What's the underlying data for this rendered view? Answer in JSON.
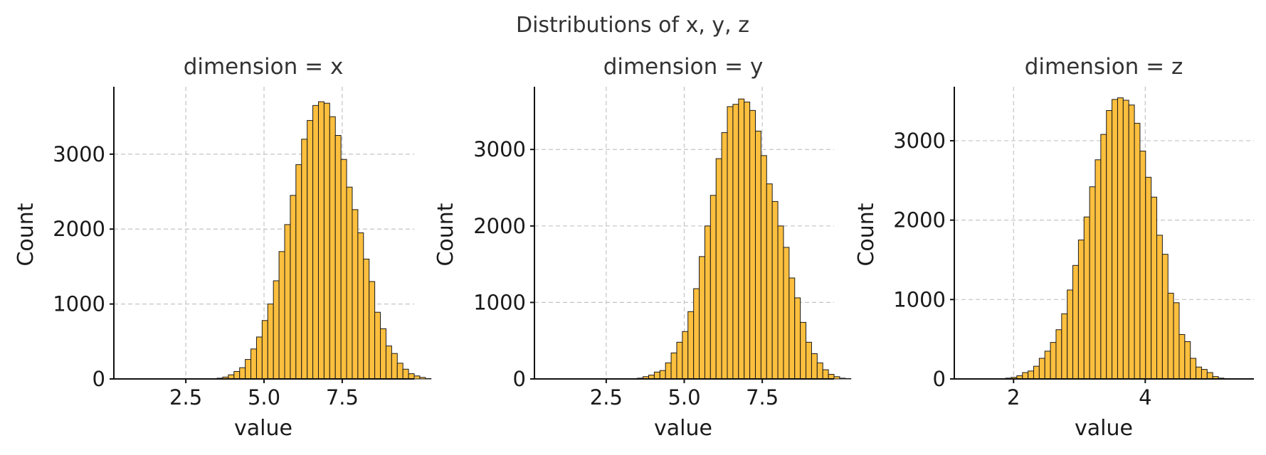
{
  "figure": {
    "suptitle": "Distributions of x, y, z",
    "bar_color": "#fcbf3e",
    "edge_color": "#1a1a1a",
    "grid": true
  },
  "chart_data": [
    {
      "type": "bar",
      "title": "dimension = x",
      "xlabel": "value",
      "ylabel": "Count",
      "xlim": [
        0.2,
        9.8
      ],
      "ylim": [
        0,
        3900
      ],
      "xticks": [
        2.5,
        5.0,
        7.5
      ],
      "xtick_labels": [
        "2.5",
        "5.0",
        "7.5"
      ],
      "yticks": [
        0,
        1000,
        2000,
        3000
      ],
      "ytick_labels": [
        "0",
        "1000",
        "2000",
        "3000"
      ],
      "bin_start": 0.8,
      "bin_width": 0.18,
      "values": [
        0,
        0,
        0,
        0,
        0,
        0,
        0,
        0,
        0,
        0,
        0,
        0,
        0,
        0,
        0,
        10,
        25,
        55,
        100,
        150,
        260,
        400,
        560,
        780,
        1000,
        1310,
        1700,
        2060,
        2450,
        2860,
        3200,
        3450,
        3650,
        3700,
        3680,
        3500,
        3250,
        2930,
        2560,
        2260,
        1950,
        1600,
        1300,
        890,
        670,
        440,
        340,
        210,
        130,
        70,
        40,
        20,
        5,
        0,
        0,
        0,
        0
      ]
    },
    {
      "type": "bar",
      "title": "dimension = y",
      "xlabel": "value",
      "ylabel": "Count",
      "xlim": [
        0.2,
        9.8
      ],
      "ylim": [
        0,
        3820
      ],
      "xticks": [
        2.5,
        5.0,
        7.5
      ],
      "xtick_labels": [
        "2.5",
        "5.0",
        "7.5"
      ],
      "yticks": [
        0,
        1000,
        2000,
        3000
      ],
      "ytick_labels": [
        "0",
        "1000",
        "2000",
        "3000"
      ],
      "bin_start": 0.8,
      "bin_width": 0.18,
      "values": [
        0,
        0,
        0,
        0,
        0,
        0,
        0,
        0,
        0,
        0,
        0,
        0,
        0,
        0,
        0,
        10,
        30,
        50,
        90,
        110,
        210,
        340,
        480,
        620,
        880,
        1180,
        1600,
        2000,
        2400,
        2880,
        3220,
        3560,
        3590,
        3660,
        3620,
        3510,
        3240,
        2920,
        2550,
        2320,
        2000,
        1720,
        1320,
        1060,
        740,
        480,
        330,
        210,
        120,
        60,
        30,
        10,
        5,
        0,
        0,
        0,
        0
      ]
    },
    {
      "type": "bar",
      "title": "dimension = z",
      "xlabel": "value",
      "ylabel": "Count",
      "xlim": [
        1.1,
        5.65
      ],
      "ylim": [
        0,
        3680
      ],
      "xticks": [
        2,
        4
      ],
      "xtick_labels": [
        "2",
        "4"
      ],
      "yticks": [
        0,
        1000,
        2000,
        3000
      ],
      "ytick_labels": [
        "0",
        "1000",
        "2000",
        "3000"
      ],
      "bin_start": 1.2,
      "bin_width": 0.085,
      "values": [
        0,
        0,
        0,
        0,
        0,
        0,
        0,
        0,
        10,
        20,
        40,
        80,
        100,
        160,
        260,
        350,
        460,
        620,
        820,
        1120,
        1430,
        1750,
        2040,
        2420,
        2760,
        3080,
        3380,
        3520,
        3540,
        3510,
        3450,
        3220,
        2870,
        2540,
        2290,
        1810,
        1570,
        1080,
        960,
        560,
        470,
        260,
        150,
        120,
        80,
        30,
        10,
        0,
        0,
        0,
        0,
        0,
        0,
        0
      ]
    }
  ]
}
